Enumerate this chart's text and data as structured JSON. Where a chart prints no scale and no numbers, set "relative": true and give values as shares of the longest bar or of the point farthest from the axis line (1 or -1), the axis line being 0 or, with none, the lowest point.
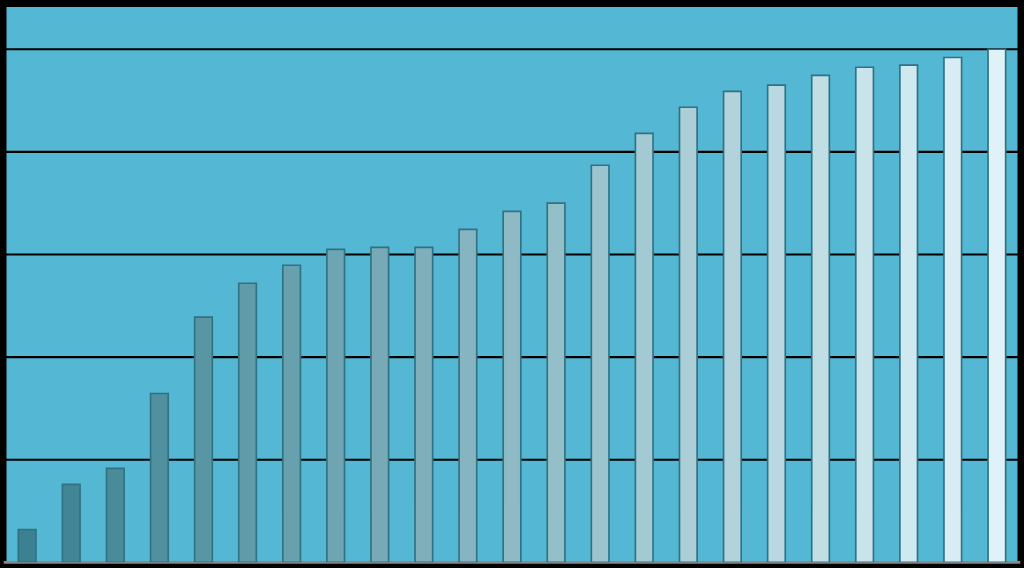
{
  "chart_data": {
    "type": "bar",
    "relative": true,
    "grid": "y",
    "categories": [
      null,
      null,
      null,
      null,
      null,
      null,
      null,
      null,
      null,
      null,
      null,
      null,
      null,
      null,
      null,
      null,
      null,
      null,
      null,
      null,
      null,
      null,
      null
    ],
    "values": [
      0.064,
      0.152,
      0.183,
      0.329,
      0.478,
      0.544,
      0.579,
      0.61,
      0.614,
      0.614,
      0.649,
      0.684,
      0.7,
      0.774,
      0.836,
      0.887,
      0.918,
      0.93,
      0.949,
      0.965,
      0.969,
      0.984,
      1
    ],
    "colors": [
      "#3b8191",
      "#428696",
      "#4a8b9a",
      "#51909f",
      "#5996a4",
      "#609ba8",
      "#68a0ad",
      "#6fa5b2",
      "#77aab6",
      "#7eafbb",
      "#86b4c0",
      "#8dbac4",
      "#94bfc9",
      "#9cc4ce",
      "#a3c9d3",
      "#abced7",
      "#b2d3dc",
      "#bad8e1",
      "#c1dee5",
      "#c9e3ea",
      "#d0e8ef",
      "#d8edf3",
      "#dff2f8"
    ]
  }
}
